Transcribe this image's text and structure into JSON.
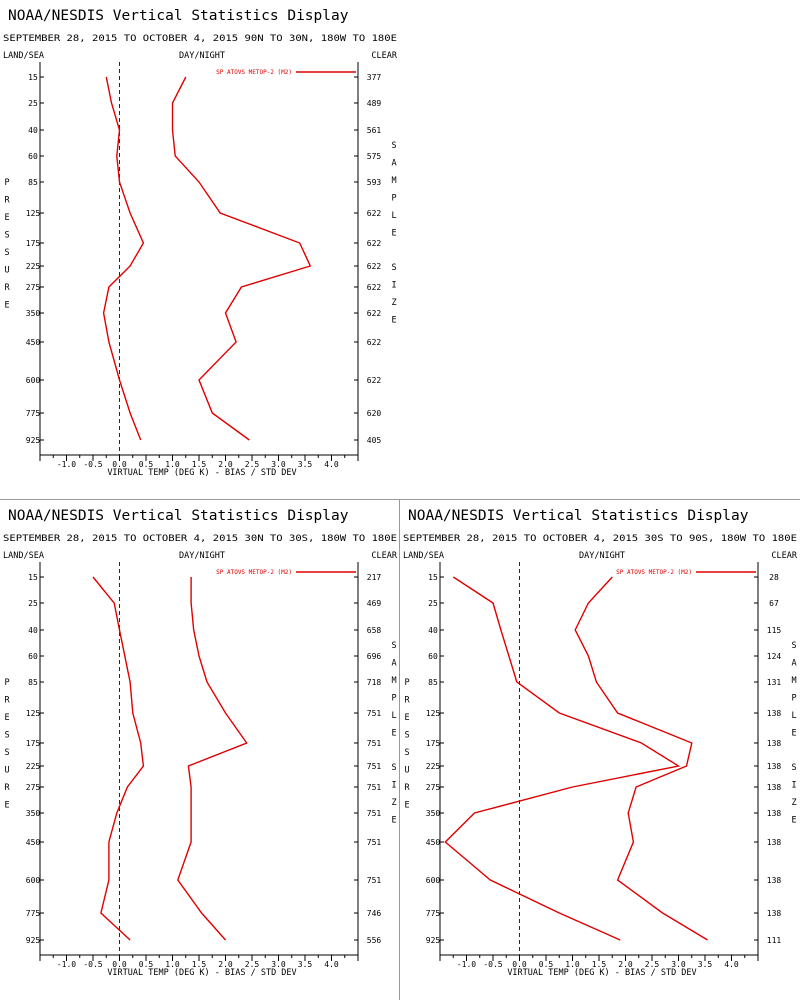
{
  "colors": {
    "series": "#e00000",
    "axis": "#000000",
    "zero_line": "#1a1a8a",
    "divider": "#999999"
  },
  "chart_data": [
    {
      "type": "line",
      "title": "NOAA/NESDIS Vertical Statistics Display",
      "subtitle": "SEPTEMBER 28, 2015 TO OCTOBER 4, 2015 90N TO 30N, 180W TO 180E",
      "left_header": "LAND/SEA",
      "center_header": "DAY/NIGHT",
      "right_header": "CLEAR",
      "ylabel": "PRESSURE",
      "right_label": "SAMPLE SIZE",
      "xlabel": "VIRTUAL TEMP (DEG K) - BIAS / STD DEV",
      "legend": "SP ATOVS METOP-2 (M2)",
      "xlim": [
        -1.5,
        4.5
      ],
      "x_ticks": [
        -1.0,
        -0.5,
        0.0,
        0.5,
        1.0,
        1.5,
        2.0,
        2.5,
        3.0,
        3.5,
        4.0
      ],
      "pressure_levels": [
        15,
        25,
        40,
        60,
        85,
        125,
        175,
        225,
        275,
        350,
        450,
        600,
        775,
        925
      ],
      "sample_size": [
        377,
        489,
        561,
        575,
        593,
        622,
        622,
        622,
        622,
        622,
        622,
        622,
        620,
        405
      ],
      "series": [
        {
          "name": "BIAS",
          "values": [
            -0.25,
            -0.15,
            0.0,
            -0.05,
            0.0,
            0.2,
            0.45,
            0.2,
            -0.2,
            -0.3,
            -0.2,
            0.0,
            0.2,
            0.4
          ]
        },
        {
          "name": "STD DEV",
          "values": [
            1.25,
            1.0,
            1.0,
            1.05,
            1.5,
            1.9,
            3.4,
            3.6,
            2.3,
            2.0,
            2.2,
            1.5,
            1.75,
            2.45
          ]
        }
      ]
    },
    {
      "type": "line",
      "title": "NOAA/NESDIS Vertical Statistics Display",
      "subtitle": "SEPTEMBER 28, 2015 TO OCTOBER 4, 2015 30N TO 30S, 180W TO 180E",
      "left_header": "LAND/SEA",
      "center_header": "DAY/NIGHT",
      "right_header": "CLEAR",
      "ylabel": "PRESSURE",
      "right_label": "SAMPLE SIZE",
      "xlabel": "VIRTUAL TEMP (DEG K) - BIAS / STD DEV",
      "legend": "SP ATOVS METOP-2 (M2)",
      "xlim": [
        -1.5,
        4.5
      ],
      "x_ticks": [
        -1.0,
        -0.5,
        0.0,
        0.5,
        1.0,
        1.5,
        2.0,
        2.5,
        3.0,
        3.5,
        4.0
      ],
      "pressure_levels": [
        15,
        25,
        40,
        60,
        85,
        125,
        175,
        225,
        275,
        350,
        450,
        600,
        775,
        925
      ],
      "sample_size": [
        217,
        469,
        658,
        696,
        718,
        751,
        751,
        751,
        751,
        751,
        751,
        751,
        746,
        556
      ],
      "series": [
        {
          "name": "BIAS",
          "values": [
            -0.5,
            -0.1,
            0.0,
            0.1,
            0.2,
            0.25,
            0.4,
            0.45,
            0.15,
            -0.05,
            -0.2,
            -0.2,
            -0.35,
            0.2
          ]
        },
        {
          "name": "STD DEV",
          "values": [
            1.35,
            1.35,
            1.4,
            1.5,
            1.65,
            2.0,
            2.4,
            1.3,
            1.35,
            1.35,
            1.35,
            1.1,
            1.55,
            2.0
          ]
        }
      ]
    },
    {
      "type": "line",
      "title": "NOAA/NESDIS Vertical Statistics Display",
      "subtitle": "SEPTEMBER 28, 2015 TO OCTOBER 4, 2015 30S TO 90S, 180W TO 180E",
      "left_header": "LAND/SEA",
      "center_header": "DAY/NIGHT",
      "right_header": "CLEAR",
      "ylabel": "PRESSURE",
      "right_label": "SAMPLE SIZE",
      "xlabel": "VIRTUAL TEMP (DEG K) - BIAS / STD DEV",
      "legend": "SP ATOVS METOP-2 (M2)",
      "xlim": [
        -1.5,
        4.5
      ],
      "x_ticks": [
        -1.0,
        -0.5,
        0.0,
        0.5,
        1.0,
        1.5,
        2.0,
        2.5,
        3.0,
        3.5,
        4.0
      ],
      "pressure_levels": [
        15,
        25,
        40,
        60,
        85,
        125,
        175,
        225,
        275,
        350,
        450,
        600,
        775,
        925
      ],
      "sample_size": [
        28,
        67,
        115,
        124,
        131,
        138,
        138,
        138,
        138,
        138,
        138,
        138,
        138,
        111
      ],
      "series": [
        {
          "name": "BIAS",
          "values": [
            -1.25,
            -0.5,
            -0.35,
            -0.2,
            -0.05,
            0.75,
            2.3,
            3.0,
            1.0,
            -0.85,
            -1.4,
            -0.55,
            0.75,
            1.9
          ]
        },
        {
          "name": "STD DEV",
          "values": [
            1.75,
            1.3,
            1.05,
            1.3,
            1.45,
            1.85,
            3.25,
            3.15,
            2.2,
            2.05,
            2.15,
            1.85,
            2.7,
            3.55
          ]
        }
      ]
    }
  ]
}
